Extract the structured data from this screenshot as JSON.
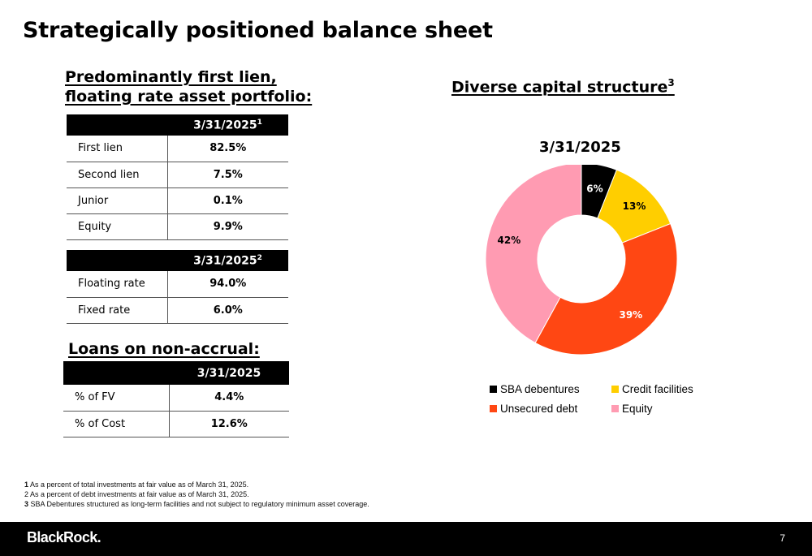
{
  "page": {
    "title": "Strategically positioned balance sheet",
    "page_number": "7",
    "brand": "BlackRock."
  },
  "portfolio": {
    "heading_line1": "Predominantly first lien,",
    "heading_line2": "floating rate asset portfolio:",
    "lien_table": {
      "column_header": "3/31/2025",
      "column_footnote": "1",
      "rows": [
        {
          "label": "First lien",
          "value": "82.5%"
        },
        {
          "label": "Second lien",
          "value": "7.5%"
        },
        {
          "label": "Junior",
          "value": "0.1%"
        },
        {
          "label": "Equity",
          "value": "9.9%"
        }
      ]
    },
    "rate_table": {
      "column_header": "3/31/2025",
      "column_footnote": "2",
      "rows": [
        {
          "label": "Floating rate",
          "value": "94.0%"
        },
        {
          "label": "Fixed rate",
          "value": "6.0%"
        }
      ]
    }
  },
  "non_accrual": {
    "heading": "Loans on non-accrual:",
    "table": {
      "column_header": "3/31/2025",
      "rows": [
        {
          "label": "% of FV",
          "value": "4.4%"
        },
        {
          "label": "% of Cost",
          "value": "12.6%"
        }
      ]
    }
  },
  "capital": {
    "heading": "Diverse capital structure",
    "heading_footnote": "3",
    "chart_date": "3/31/2025"
  },
  "chart_data": {
    "type": "pie",
    "subtitle": "3/31/2025",
    "donut": true,
    "categories": [
      "SBA debentures",
      "Credit facilities",
      "Unsecured debt",
      "Equity"
    ],
    "values": [
      6,
      13,
      39,
      42
    ],
    "labels": [
      "6%",
      "13%",
      "39%",
      "42%"
    ],
    "colors": [
      "#000000",
      "#FFCE00",
      "#FF4713",
      "#FF9BB2"
    ],
    "label_colors": [
      "#ffffff",
      "#000000",
      "#ffffff",
      "#000000"
    ],
    "legend_position": "bottom"
  },
  "footnotes": [
    {
      "num": "1",
      "text": " As a percent of total investments at fair value as of March 31, 2025."
    },
    {
      "num": "2",
      "text": " As a percent of debt investments at fair value as of March 31, 2025."
    },
    {
      "num": "3",
      "text": " SBA Debentures structured as long-term facilities and not subject to regulatory minimum asset coverage."
    }
  ]
}
